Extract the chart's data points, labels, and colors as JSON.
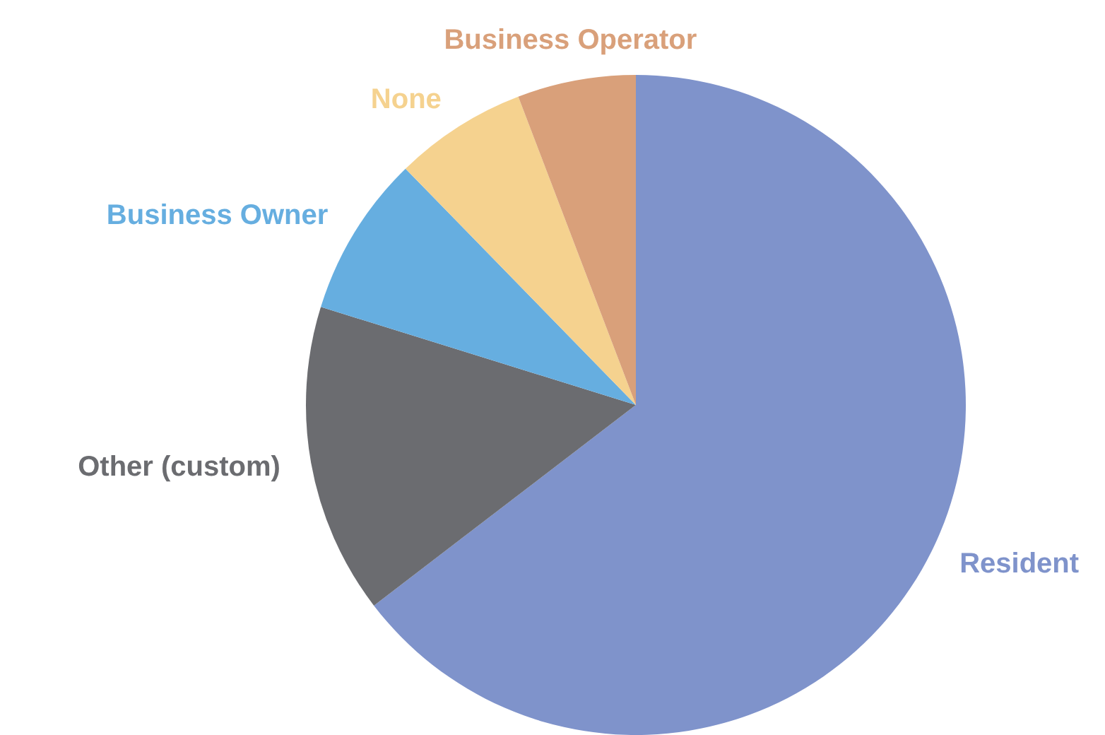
{
  "chart_data": {
    "type": "pie",
    "categories": [
      "Resident",
      "Other (custom)",
      "Business Owner",
      "None",
      "Business Operator"
    ],
    "values": [
      64.6,
      15.2,
      7.9,
      6.5,
      5.8
    ],
    "colors": [
      "#7f93cb",
      "#6b6c70",
      "#66aee0",
      "#f5d28f",
      "#d9a07a"
    ],
    "legend": false
  }
}
